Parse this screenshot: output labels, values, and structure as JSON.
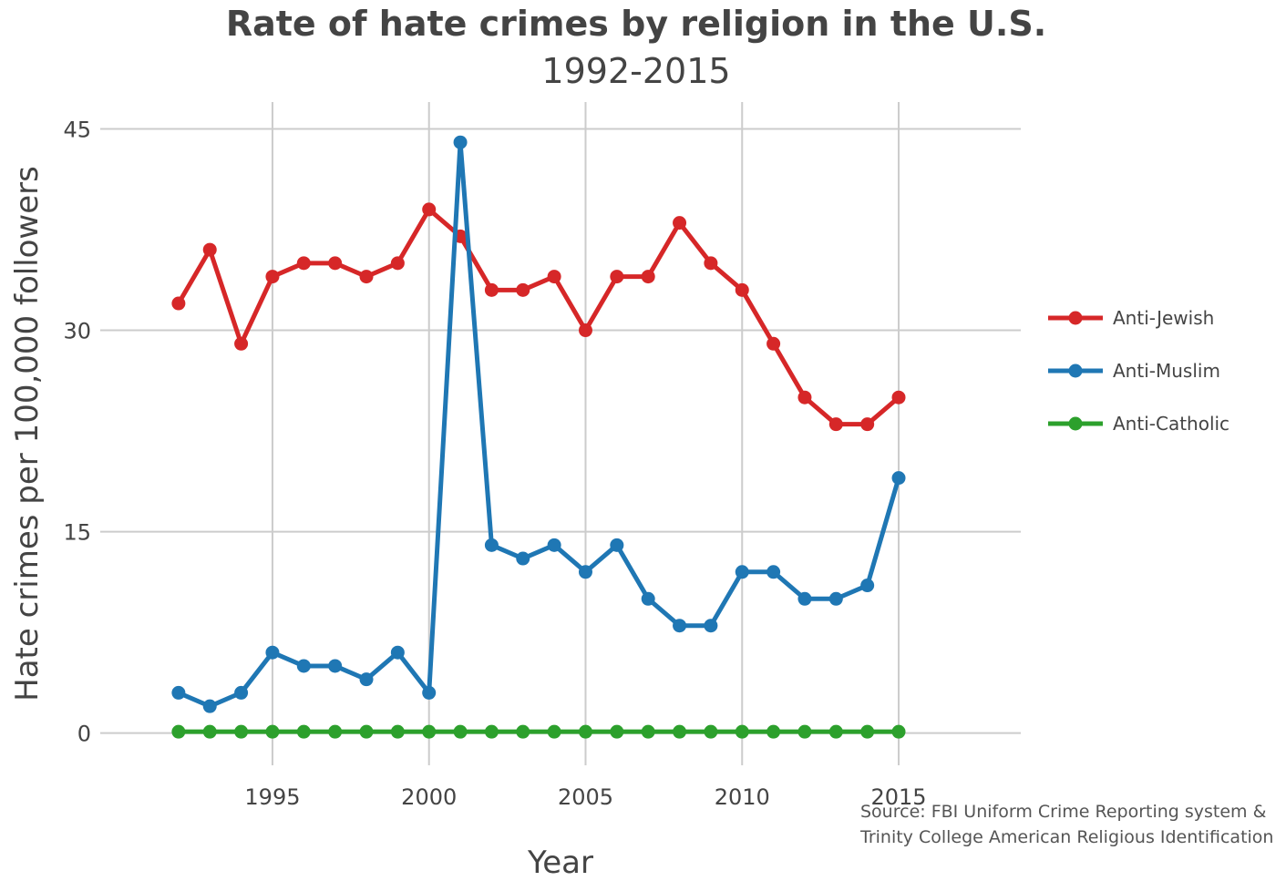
{
  "title": "Rate of hate crimes by religion in the U.S.",
  "subtitle": "1992-2015",
  "source_lines": [
    "Source: FBI Uniform Crime Reporting system &",
    "Trinity College American Religious Identification"
  ],
  "chart_data": {
    "type": "line",
    "title": "Rate of hate crimes by religion in the U.S.",
    "subtitle": "1992-2015",
    "xlabel": "Year",
    "ylabel": "Hate crimes per 100,000 followers",
    "xlim": [
      1989.5,
      2018.9
    ],
    "ylim": [
      -2.4,
      47
    ],
    "x_ticks": [
      1995,
      2000,
      2005,
      2010,
      2015
    ],
    "y_ticks": [
      0,
      15,
      30,
      45
    ],
    "grid": true,
    "legend_position": "right",
    "x": [
      1992,
      1993,
      1994,
      1995,
      1996,
      1997,
      1998,
      1999,
      2000,
      2001,
      2002,
      2003,
      2004,
      2005,
      2006,
      2007,
      2008,
      2009,
      2010,
      2011,
      2012,
      2013,
      2014,
      2015
    ],
    "series": [
      {
        "name": "Anti-Jewish",
        "color": "#d62728",
        "values": [
          32,
          36,
          29,
          34,
          35,
          35,
          34,
          35,
          39,
          37,
          33,
          33,
          34,
          30,
          34,
          34,
          38,
          35,
          33,
          29,
          25,
          23,
          23,
          25
        ]
      },
      {
        "name": "Anti-Muslim",
        "color": "#1f77b4",
        "values": [
          3,
          2,
          3,
          6,
          5,
          5,
          4,
          6,
          3,
          44,
          14,
          13,
          14,
          12,
          14,
          10,
          8,
          8,
          12,
          12,
          10,
          10,
          11,
          19
        ]
      },
      {
        "name": "Anti-Catholic",
        "color": "#2ca02c",
        "values": [
          0.1,
          0.1,
          0.1,
          0.1,
          0.1,
          0.1,
          0.1,
          0.1,
          0.1,
          0.1,
          0.1,
          0.1,
          0.1,
          0.1,
          0.1,
          0.1,
          0.1,
          0.1,
          0.1,
          0.1,
          0.1,
          0.1,
          0.1,
          0.1
        ]
      }
    ]
  }
}
